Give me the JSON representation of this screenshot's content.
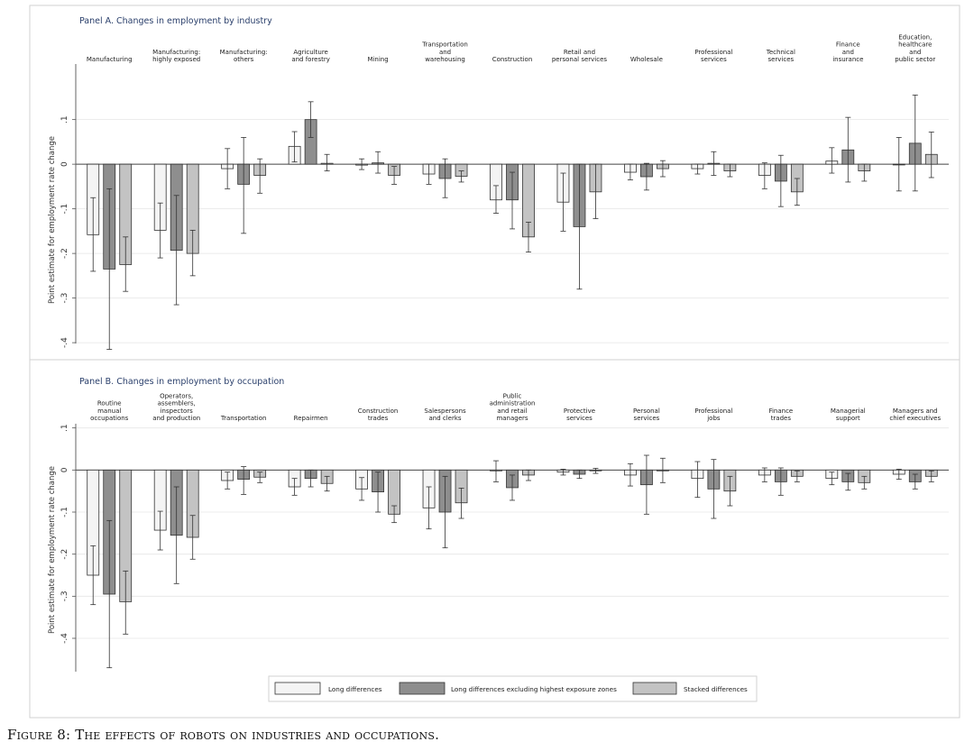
{
  "figure_caption": "Figure 8: The effects of robots on industries and occupations.",
  "colors": {
    "long": "#f4f4f4",
    "excl": "#8e8e8e",
    "stacked": "#c3c3c3",
    "title": "#2a3f6b",
    "grid": "#e6e6e6",
    "frame": "#d2d2d2"
  },
  "legend": {
    "entries": [
      "Long differences",
      "Long differences excluding highest exposure zones",
      "Stacked differences"
    ],
    "placement": "bottom-center"
  },
  "chart_data": [
    {
      "type": "bar",
      "panel": "A",
      "title": "Panel A. Changes in employment by industry",
      "ylabel": "Point estimate for employment rate change",
      "ylim": [
        -0.42,
        0.17
      ],
      "yticks": [
        0.1,
        0,
        -0.1,
        -0.2,
        -0.3,
        -0.4
      ],
      "ytick_labels": [
        ".1",
        "0",
        "-.1",
        "-.2",
        "-.3",
        "-.4"
      ],
      "categories": [
        [
          "Manufacturing"
        ],
        [
          "Manufacturing:",
          "highly exposed"
        ],
        [
          "Manufacturing:",
          "others"
        ],
        [
          "Agriculture",
          "and forestry"
        ],
        [
          "Mining"
        ],
        [
          "Transportation",
          "and",
          "warehousing"
        ],
        [
          "Construction"
        ],
        [
          "Retail and",
          "personal services"
        ],
        [
          "Wholesale"
        ],
        [
          "Professional",
          "services"
        ],
        [
          "Technical",
          "services"
        ],
        [
          "Finance",
          "and",
          "insurance"
        ],
        [
          "Education,",
          "healthcare",
          "and",
          "public sector"
        ]
      ],
      "series": [
        {
          "name": "Long differences",
          "values": [
            -0.158,
            -0.148,
            -0.01,
            0.04,
            -0.002,
            -0.022,
            -0.08,
            -0.085,
            -0.018,
            -0.01,
            -0.025,
            0.007,
            -0.001
          ],
          "ci_low": [
            -0.24,
            -0.21,
            -0.055,
            0.005,
            -0.012,
            -0.045,
            -0.11,
            -0.15,
            -0.035,
            -0.022,
            -0.055,
            -0.02,
            -0.06
          ],
          "ci_high": [
            -0.075,
            -0.087,
            0.035,
            0.073,
            0.012,
            0.0,
            -0.048,
            -0.02,
            0.0,
            0.0,
            0.003,
            0.037,
            0.06
          ]
        },
        {
          "name": "Long differences excluding highest exposure zones",
          "values": [
            -0.235,
            -0.193,
            -0.045,
            0.1,
            0.003,
            -0.032,
            -0.08,
            -0.14,
            -0.028,
            0.002,
            -0.038,
            0.032,
            0.047
          ],
          "ci_low": [
            -0.415,
            -0.315,
            -0.155,
            0.06,
            -0.02,
            -0.075,
            -0.145,
            -0.28,
            -0.058,
            -0.025,
            -0.095,
            -0.04,
            -0.06
          ],
          "ci_high": [
            -0.055,
            -0.07,
            0.06,
            0.14,
            0.028,
            0.012,
            -0.018,
            0.0,
            0.002,
            0.028,
            0.02,
            0.105,
            0.155
          ]
        },
        {
          "name": "Stacked differences",
          "values": [
            -0.225,
            -0.2,
            -0.025,
            0.002,
            -0.025,
            -0.027,
            -0.163,
            -0.062,
            -0.01,
            -0.015,
            -0.062,
            -0.015,
            0.022
          ],
          "ci_low": [
            -0.285,
            -0.25,
            -0.065,
            -0.015,
            -0.045,
            -0.04,
            -0.197,
            -0.122,
            -0.028,
            -0.028,
            -0.092,
            -0.038,
            -0.03
          ],
          "ci_high": [
            -0.163,
            -0.148,
            0.012,
            0.022,
            -0.005,
            -0.015,
            -0.13,
            0.0,
            0.008,
            0.0,
            -0.032,
            0.0,
            0.072
          ]
        }
      ]
    },
    {
      "type": "bar",
      "panel": "B",
      "title": "Panel B. Changes in employment by occupation",
      "ylabel": "Point estimate for employment rate change",
      "ylim": [
        -0.49,
        0.11
      ],
      "yticks": [
        0.1,
        0,
        -0.1,
        -0.2,
        -0.3,
        -0.4
      ],
      "ytick_labels": [
        ".1",
        "0",
        "-.1",
        "-.2",
        "-.3",
        "-.4"
      ],
      "categories": [
        [
          "Routine",
          "manual",
          "occupations"
        ],
        [
          "Operators,",
          "assemblers,",
          "inspectors",
          "and production"
        ],
        [
          "Transportation"
        ],
        [
          "Repairmen"
        ],
        [
          "Construction",
          "trades"
        ],
        [
          "Salespersons",
          "and clerks"
        ],
        [
          "Public",
          "administration",
          "and retail",
          "managers"
        ],
        [
          "Protective",
          "services"
        ],
        [
          "Personal",
          "services"
        ],
        [
          "Professional",
          "jobs"
        ],
        [
          "Finance",
          "trades"
        ],
        [
          "Managerial",
          "support"
        ],
        [
          "Managers and",
          "chief executives"
        ]
      ],
      "series": [
        {
          "name": "Long differences",
          "values": [
            -0.25,
            -0.143,
            -0.025,
            -0.04,
            -0.045,
            -0.09,
            -0.002,
            -0.005,
            -0.012,
            -0.02,
            -0.012,
            -0.02,
            -0.01
          ],
          "ci_low": [
            -0.32,
            -0.19,
            -0.045,
            -0.06,
            -0.072,
            -0.14,
            -0.028,
            -0.012,
            -0.038,
            -0.065,
            -0.028,
            -0.035,
            -0.022
          ],
          "ci_high": [
            -0.18,
            -0.098,
            -0.005,
            -0.02,
            -0.018,
            -0.04,
            0.022,
            0.002,
            0.015,
            0.02,
            0.005,
            -0.005,
            0.002
          ]
        },
        {
          "name": "Long differences excluding highest exposure zones",
          "values": [
            -0.295,
            -0.155,
            -0.022,
            -0.02,
            -0.052,
            -0.1,
            -0.042,
            -0.01,
            -0.035,
            -0.045,
            -0.028,
            -0.028,
            -0.028
          ],
          "ci_low": [
            -0.47,
            -0.27,
            -0.058,
            -0.04,
            -0.1,
            -0.185,
            -0.072,
            -0.02,
            -0.105,
            -0.115,
            -0.06,
            -0.048,
            -0.045
          ],
          "ci_high": [
            -0.12,
            -0.04,
            0.008,
            0.0,
            -0.005,
            -0.015,
            -0.012,
            0.0,
            0.035,
            0.025,
            0.005,
            -0.008,
            -0.01
          ]
        },
        {
          "name": "Stacked differences",
          "values": [
            -0.313,
            -0.16,
            -0.017,
            -0.032,
            -0.105,
            -0.078,
            -0.012,
            -0.002,
            -0.002,
            -0.05,
            -0.015,
            -0.03,
            -0.015
          ],
          "ci_low": [
            -0.39,
            -0.212,
            -0.03,
            -0.05,
            -0.125,
            -0.115,
            -0.025,
            -0.008,
            -0.03,
            -0.085,
            -0.028,
            -0.045,
            -0.028
          ],
          "ci_high": [
            -0.24,
            -0.108,
            -0.005,
            -0.015,
            -0.085,
            -0.043,
            0.0,
            0.004,
            0.028,
            -0.015,
            -0.002,
            -0.015,
            -0.002
          ]
        }
      ]
    }
  ]
}
